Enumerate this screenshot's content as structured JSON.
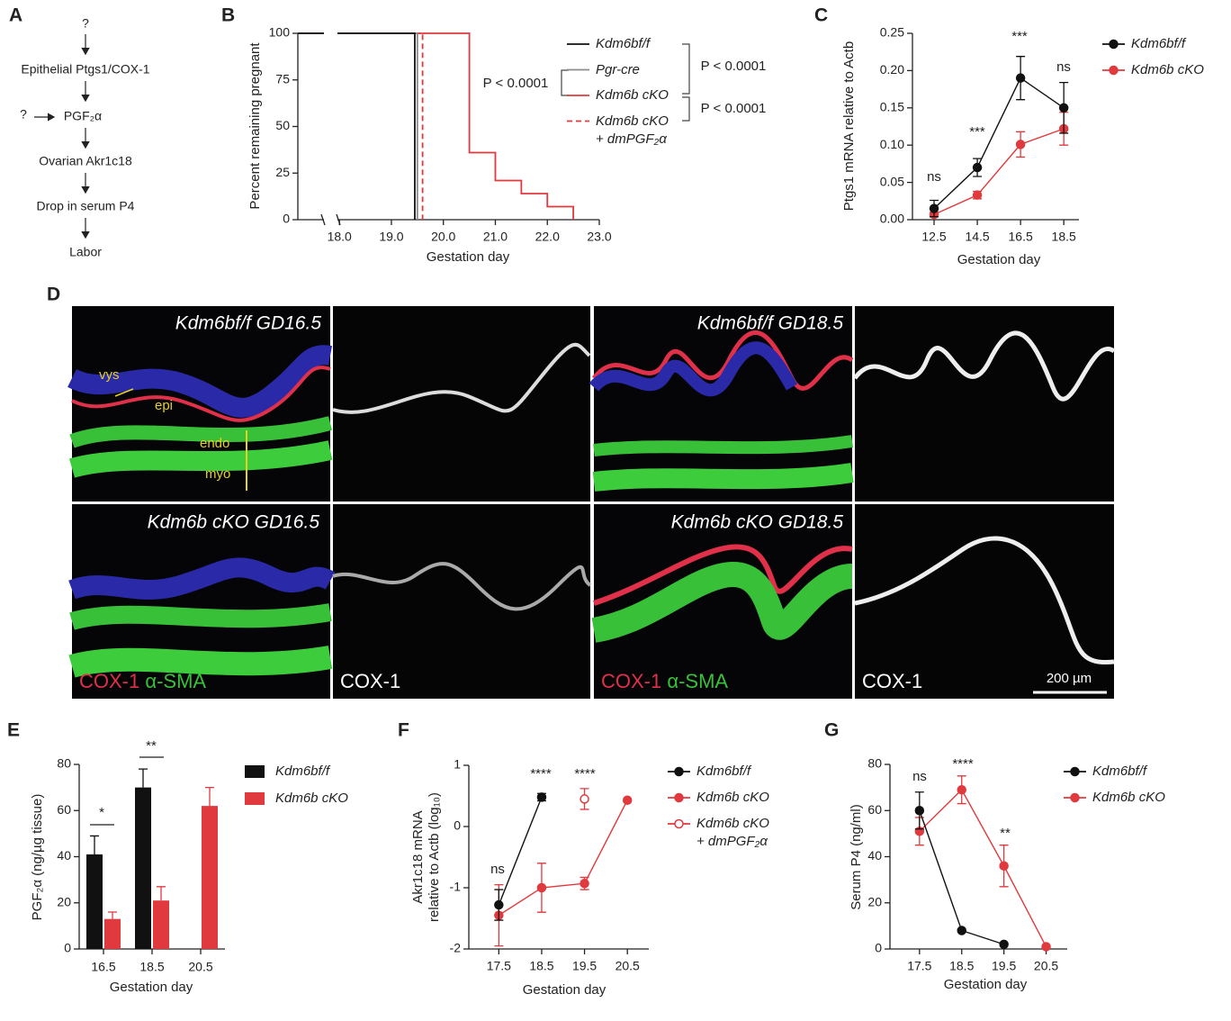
{
  "panel_labels": [
    "A",
    "B",
    "C",
    "D",
    "E",
    "F",
    "G"
  ],
  "diagram": {
    "steps": [
      "?",
      "Epithelial Ptgs1/COX-1",
      "PGF₂α",
      "Ovarian Akr1c18",
      "Drop in serum P4",
      "Labor"
    ],
    "side_input": "?"
  },
  "micrographs": {
    "labels": [
      "Kdm6bf/f GD16.5",
      "Kdm6b cKO GD16.5",
      "Kdm6bf/f GD18.5",
      "Kdm6b cKO GD18.5"
    ],
    "stain_red": "COX-1",
    "stain_green": "α-SMA",
    "channel": "COX-1",
    "annotations": [
      "vys",
      "epi",
      "endo",
      "myo"
    ],
    "scale_bar": "200 µm"
  },
  "chart_data": [
    {
      "type": "step",
      "xlabel": "Gestation day",
      "ylabel": "Percent remaining pregnant",
      "xlim": [
        17.2,
        23
      ],
      "ylim": [
        0,
        100
      ],
      "xticks": [
        {
          "value": 18,
          "label": "18.0"
        },
        {
          "value": 19,
          "label": "19.0"
        },
        {
          "value": 20,
          "label": "20.0"
        },
        {
          "value": 21,
          "label": "21.0"
        },
        {
          "value": 22,
          "label": "22.0"
        },
        {
          "value": 23,
          "label": "23.0"
        }
      ],
      "yticks": [
        0,
        25,
        50,
        75,
        100
      ],
      "series": [
        {
          "name": "Kdm6bf/f",
          "color": "#111111",
          "x": [
            17.2,
            19.45,
            19.45
          ],
          "values": [
            100,
            100,
            0
          ]
        },
        {
          "name": "Pgr-cre",
          "color": "#8c8c8c",
          "x": [
            17.2,
            19.5,
            19.5
          ],
          "values": [
            100,
            100,
            0
          ]
        },
        {
          "name": "Kdm6b cKO",
          "color": "#e0393e",
          "x": [
            17.2,
            20.5,
            20.5,
            21.0,
            21.0,
            21.5,
            21.5,
            22.0,
            22.0,
            22.5,
            22.5
          ],
          "values": [
            100,
            100,
            36,
            36,
            21,
            21,
            14,
            14,
            7,
            7,
            0
          ]
        },
        {
          "name": "Kdm6b cKO\n+ dmPGF₂α",
          "color": "#e0393e",
          "dashed": true,
          "x": [
            17.2,
            19.6,
            19.6
          ],
          "values": [
            100,
            100,
            0
          ]
        }
      ],
      "annotations": [
        "P < 0.0001",
        "P < 0.0001",
        "P < 0.0001"
      ]
    },
    {
      "type": "line",
      "xlabel": "Gestation day",
      "ylabel": "Ptgs1 mRNA relative to Actb",
      "x": [
        12.5,
        14.5,
        16.5,
        18.5
      ],
      "xlim": [
        11.5,
        19.2
      ],
      "ylim": [
        0,
        0.25
      ],
      "xticks": [
        12.5,
        14.5,
        16.5,
        18.5
      ],
      "yticks": [
        {
          "value": 0,
          "label": "0.00"
        },
        {
          "value": 0.05,
          "label": "0.05"
        },
        {
          "value": 0.1,
          "label": "0.10"
        },
        {
          "value": 0.15,
          "label": "0.15"
        },
        {
          "value": 0.2,
          "label": "0.20"
        },
        {
          "value": 0.25,
          "label": "0.25"
        }
      ],
      "series": [
        {
          "name": "Kdm6bf/f",
          "color": "#111111",
          "values": [
            0.015,
            0.07,
            0.19,
            0.15
          ],
          "errors": [
            0.011,
            0.012,
            0.029,
            0.034
          ]
        },
        {
          "name": "Kdm6b cKO",
          "color": "#e0393e",
          "values": [
            0.007,
            0.033,
            0.101,
            0.122
          ],
          "errors": [
            0.003,
            0.005,
            0.017,
            0.022
          ]
        }
      ],
      "annotations": [
        "ns",
        "***",
        "***",
        "ns"
      ]
    },
    {
      "type": "bar",
      "xlabel": "Gestation day",
      "ylabel": "PGF₂α (ng/µg tissue)",
      "categories": [
        "16.5",
        "18.5",
        "20.5"
      ],
      "ylim": [
        0,
        80
      ],
      "yticks": [
        0,
        20,
        40,
        60,
        80
      ],
      "series": [
        {
          "name": "Kdm6bf/f",
          "color": "#111111",
          "values": [
            41,
            70,
            null
          ],
          "errors": [
            8,
            8,
            null
          ]
        },
        {
          "name": "Kdm6b cKO",
          "color": "#e0393e",
          "values": [
            13,
            21,
            62
          ],
          "errors": [
            3,
            6,
            8
          ]
        }
      ],
      "annotations": [
        "*",
        "**"
      ]
    },
    {
      "type": "line",
      "xlabel": "Gestation day",
      "ylabel": "Akr1c18 mRNA\nrelative to Actb (log₁₀)",
      "x": [
        17.5,
        18.5,
        19.5,
        20.5
      ],
      "xlim": [
        16.8,
        21
      ],
      "ylim": [
        -2,
        1
      ],
      "xticks": [
        17.5,
        18.5,
        19.5,
        20.5
      ],
      "yticks": [
        -2,
        -1,
        0,
        1
      ],
      "series": [
        {
          "name": "Kdm6bf/f",
          "color": "#111111",
          "values": [
            -1.28,
            0.48,
            null,
            null
          ],
          "errors": [
            0.25,
            0.06,
            null,
            null
          ]
        },
        {
          "name": "Kdm6b cKO",
          "color": "#e0393e",
          "values": [
            -1.45,
            -1.0,
            -0.93,
            0.43
          ],
          "errors": [
            0.5,
            0.4,
            0.1,
            null
          ]
        },
        {
          "name": "Kdm6b cKO\n+ dmPGF₂α",
          "color": "#e0393e",
          "marker": "open",
          "values": [
            null,
            null,
            0.45,
            null
          ],
          "errors": [
            null,
            null,
            0.17,
            null
          ]
        }
      ],
      "annotations": [
        "ns",
        "****",
        "****"
      ]
    },
    {
      "type": "line",
      "xlabel": "Gestation day",
      "ylabel": "Serum P4 (ng/ml)",
      "x": [
        17.5,
        18.5,
        19.5,
        20.5
      ],
      "xlim": [
        16.8,
        21
      ],
      "ylim": [
        0,
        80
      ],
      "xticks": [
        17.5,
        18.5,
        19.5,
        20.5
      ],
      "yticks": [
        0,
        20,
        40,
        60,
        80
      ],
      "series": [
        {
          "name": "Kdm6bf/f",
          "color": "#111111",
          "values": [
            60,
            8,
            2,
            null
          ],
          "errors": [
            8,
            null,
            null,
            null
          ]
        },
        {
          "name": "Kdm6b cKO",
          "color": "#e0393e",
          "values": [
            51,
            69,
            36,
            1
          ],
          "errors": [
            6,
            6,
            9,
            null
          ]
        }
      ],
      "annotations": [
        "ns",
        "****",
        "**"
      ]
    }
  ]
}
